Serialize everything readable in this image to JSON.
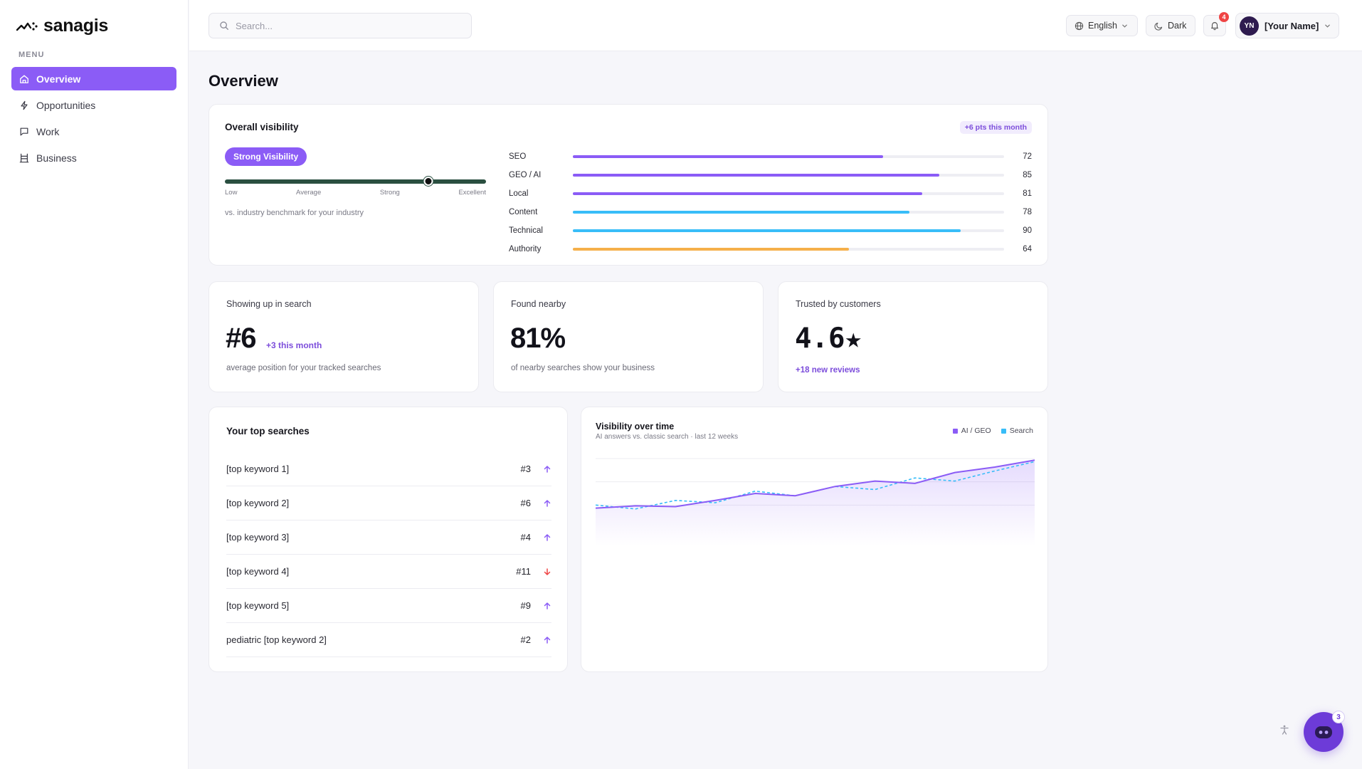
{
  "brand": {
    "name": "sanagis"
  },
  "sidebar": {
    "menu_label": "MENU",
    "items": [
      {
        "label": "Overview",
        "icon": "home-icon",
        "active": true
      },
      {
        "label": "Opportunities",
        "icon": "lightning-icon",
        "active": false
      },
      {
        "label": "Work",
        "icon": "message-square-icon",
        "active": false
      },
      {
        "label": "Business",
        "icon": "building-icon",
        "active": false
      }
    ]
  },
  "header": {
    "search_placeholder": "Search...",
    "language": "English",
    "theme": "Dark",
    "notification_count": "4",
    "user_initials": "YN",
    "user_name": "[Your Name]"
  },
  "page": {
    "title": "Overview"
  },
  "visibility": {
    "title": "Overall visibility",
    "delta_badge": "+6 pts this month",
    "status_pill": "Strong Visibility",
    "gauge_position": 0.78,
    "gauge_labels": [
      "Low",
      "Average",
      "Strong",
      "Excellent"
    ],
    "benchmark_text": "vs. industry benchmark for your industry",
    "metrics": [
      {
        "label": "SEO",
        "value": 72,
        "color": "#8b5cf6"
      },
      {
        "label": "GEO / AI",
        "value": 85,
        "color": "#8b5cf6"
      },
      {
        "label": "Local",
        "value": 81,
        "color": "#8b5cf6"
      },
      {
        "label": "Content",
        "value": 78,
        "color": "#38bdf8"
      },
      {
        "label": "Technical",
        "value": 90,
        "color": "#38bdf8"
      },
      {
        "label": "Authority",
        "value": 64,
        "color": "#f5b04a"
      }
    ]
  },
  "stats": {
    "search": {
      "title": "Showing up in search",
      "value": "#6",
      "delta": "+3 this month",
      "desc": "average position for your tracked searches"
    },
    "nearby": {
      "title": "Found nearby",
      "value": "81%",
      "desc": "of nearby searches show your business"
    },
    "trusted": {
      "title": "Trusted by customers",
      "value": "4.6★",
      "delta": "+18 new reviews"
    }
  },
  "top_searches": {
    "title": "Your top searches",
    "rows": [
      {
        "keyword": "[top keyword 1]",
        "rank": "#3",
        "trend": "up"
      },
      {
        "keyword": "[top keyword 2]",
        "rank": "#6",
        "trend": "up"
      },
      {
        "keyword": "[top keyword 3]",
        "rank": "#4",
        "trend": "up"
      },
      {
        "keyword": "[top keyword 4]",
        "rank": "#11",
        "trend": "down"
      },
      {
        "keyword": "[top keyword 5]",
        "rank": "#9",
        "trend": "up"
      },
      {
        "keyword": "pediatric [top keyword 2]",
        "rank": "#2",
        "trend": "up"
      }
    ]
  },
  "visibility_chart": {
    "title": "Visibility over time",
    "subtitle": "AI answers vs. classic search · last 12 weeks",
    "colors": {
      "ai": "#8b5cf6",
      "search": "#38bdf8",
      "grid": "#ececf1"
    }
  },
  "chart_data": {
    "type": "line",
    "x": [
      1,
      2,
      3,
      4,
      5,
      6,
      7,
      8,
      9,
      10,
      11,
      12
    ],
    "series": [
      {
        "name": "AI / GEO",
        "values": [
          26,
          29,
          28,
          36,
          45,
          42,
          54,
          61,
          58,
          72,
          79,
          88
        ]
      },
      {
        "name": "Search",
        "values": [
          30,
          25,
          36,
          33,
          48,
          42,
          54,
          50,
          65,
          61,
          74,
          86
        ]
      }
    ],
    "ylim": [
      0,
      90
    ],
    "grid": true,
    "legend_position": "top-right"
  },
  "assistant": {
    "badge": "3"
  }
}
